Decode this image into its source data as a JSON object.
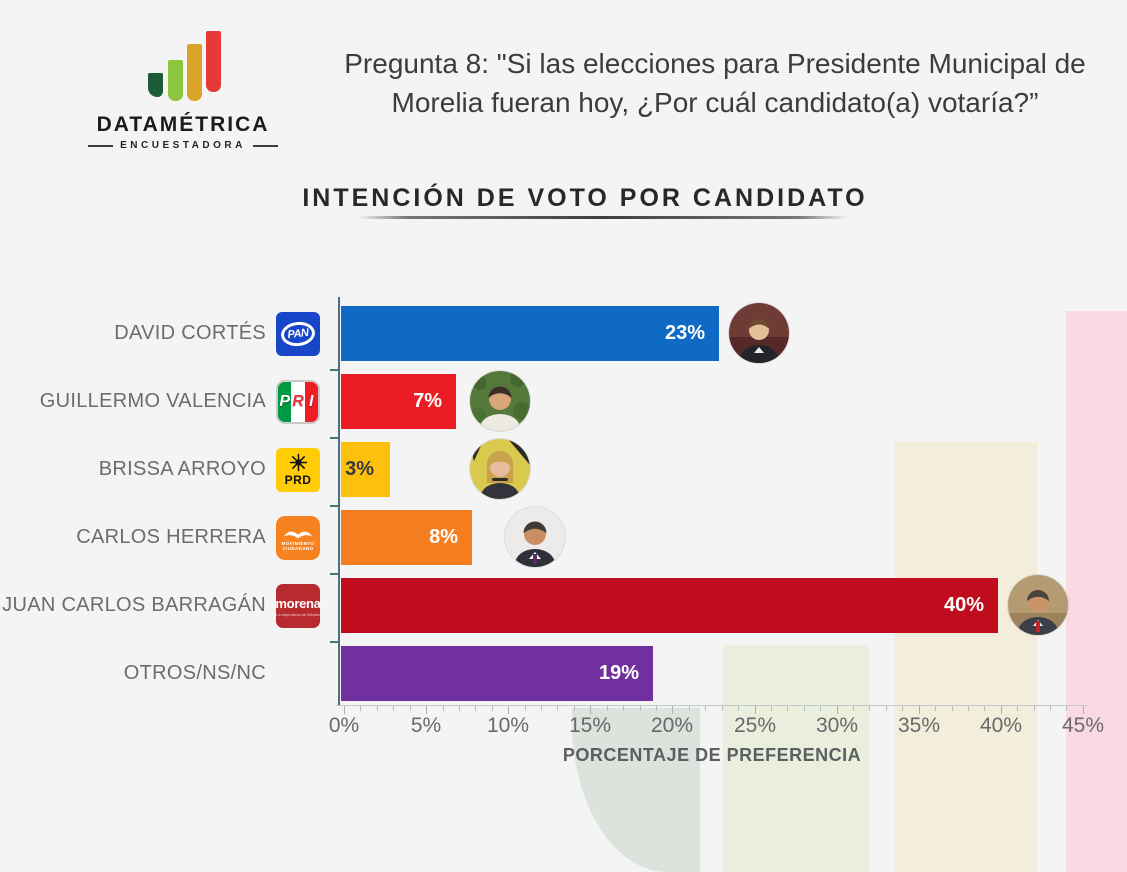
{
  "brand": {
    "name": "DATAMÉTRICA",
    "tagline": "ENCUESTADORA",
    "bar_colors": [
      "#1E5B39",
      "#8CC63E",
      "#D9A428",
      "#E53A38"
    ]
  },
  "question": {
    "line1": "Pregunta 8: \"Si las elecciones para Presidente Municipal de",
    "line2": "Morelia fueran hoy, ¿Por cuál candidato(a) votaría?”"
  },
  "chart_data": {
    "type": "bar",
    "orientation": "horizontal",
    "title": "INTENCIÓN DE VOTO POR CANDIDATO",
    "xlabel": "PORCENTAJE DE PREFERENCIA",
    "xlim": [
      0,
      45
    ],
    "x_tick_step": 5,
    "x_tick_labels": [
      "0%",
      "5%",
      "10%",
      "15%",
      "20%",
      "25%",
      "30%",
      "35%",
      "40%",
      "45%"
    ],
    "grid": false,
    "legend": false,
    "categories": [
      "DAVID CORTÉS",
      "GUILLERMO VALENCIA",
      "BRISSA ARROYO",
      "CARLOS HERRERA",
      "JUAN CARLOS BARRAGÁN",
      "OTROS/NS/NC"
    ],
    "values": [
      23,
      7,
      3,
      8,
      40,
      19
    ],
    "candidates": [
      {
        "name": "DAVID CORTÉS",
        "party": "PAN",
        "value": 23,
        "value_label": "23%",
        "bar_color": "#0E6AC4"
      },
      {
        "name": "GUILLERMO VALENCIA",
        "party": "PRI",
        "value": 7,
        "value_label": "7%",
        "bar_color": "#EC1C24"
      },
      {
        "name": "BRISSA ARROYO",
        "party": "PRD",
        "value": 3,
        "value_label": "3%",
        "bar_color": "#FDC10D"
      },
      {
        "name": "CARLOS HERRERA",
        "party": "MOVIMIENTO CIUDADANO",
        "value": 8,
        "value_label": "8%",
        "bar_color": "#F57E20"
      },
      {
        "name": "JUAN CARLOS BARRAGÁN",
        "party": "MORENA",
        "value": 40,
        "value_label": "40%",
        "bar_color": "#C00D1D"
      },
      {
        "name": "OTROS/NS/NC",
        "party": null,
        "value": 19,
        "value_label": "19%",
        "bar_color": "#70309F"
      }
    ],
    "party_logos": {
      "pan": {
        "label": "PAN"
      },
      "pri": {
        "p": "P",
        "r": "R",
        "i": "I"
      },
      "prd": {
        "label": "PRD"
      },
      "mc": {
        "line1": "MOVIMIENTO",
        "line2": "CIUDADANO"
      },
      "morena": {
        "label": "morena",
        "tagline": "La esperanza de México"
      }
    }
  }
}
